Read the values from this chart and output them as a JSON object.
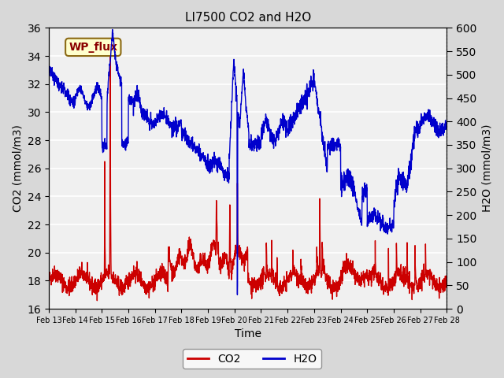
{
  "title": "LI7500 CO2 and H2O",
  "xlabel": "Time",
  "ylabel_left": "CO2 (mmol/m3)",
  "ylabel_right": "H2O (mmol/m3)",
  "annotation": "WP_flux",
  "ylim_left": [
    16,
    36
  ],
  "ylim_right": [
    0,
    600
  ],
  "yticks_left": [
    16,
    18,
    20,
    22,
    24,
    26,
    28,
    30,
    32,
    34,
    36
  ],
  "yticks_right": [
    0,
    50,
    100,
    150,
    200,
    250,
    300,
    350,
    400,
    450,
    500,
    550,
    600
  ],
  "xtick_labels": [
    "Feb 13",
    "Feb 14",
    "Feb 15",
    "Feb 16",
    "Feb 17",
    "Feb 18",
    "Feb 19",
    "Feb 20",
    "Feb 21",
    "Feb 22",
    "Feb 23",
    "Feb 24",
    "Feb 25",
    "Feb 26",
    "Feb 27",
    "Feb 28"
  ],
  "co2_color": "#cc0000",
  "h2o_color": "#0000cc",
  "plot_bg_color": "#f0f0f0",
  "fig_bg_color": "#d8d8d8",
  "legend_co2": "CO2",
  "legend_h2o": "H2O",
  "linewidth": 1.0
}
